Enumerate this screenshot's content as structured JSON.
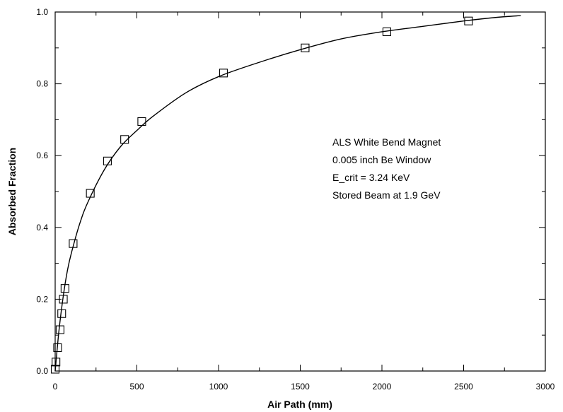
{
  "chart_data": {
    "type": "scatter",
    "title": "",
    "xlabel": "Air Path (mm)",
    "ylabel": "Absorbed Fraction",
    "xlim": [
      0,
      3000
    ],
    "ylim": [
      0,
      1.0
    ],
    "x_ticks": [
      0,
      500,
      1000,
      1500,
      2000,
      2500,
      3000
    ],
    "x_tick_labels": [
      "0",
      "500",
      "1000",
      "1500",
      "2000",
      "2500",
      "3000"
    ],
    "y_ticks": [
      0,
      0.2,
      0.4,
      0.6,
      0.8,
      1.0
    ],
    "y_tick_labels": [
      "0.0",
      "0.2",
      "0.4",
      "0.6",
      "0.8",
      "1.0"
    ],
    "grid": false,
    "annotation_lines": [
      "ALS White Bend Magnet",
      "0.005 inch Be Window",
      "E_crit = 3.24 KeV",
      "Stored Beam at 1.9 GeV"
    ],
    "series": [
      {
        "marker": "open-square",
        "points": [
          {
            "x": 0,
            "y": 0.005
          },
          {
            "x": 5,
            "y": 0.025
          },
          {
            "x": 15,
            "y": 0.065
          },
          {
            "x": 30,
            "y": 0.115
          },
          {
            "x": 40,
            "y": 0.16
          },
          {
            "x": 50,
            "y": 0.2
          },
          {
            "x": 60,
            "y": 0.23
          },
          {
            "x": 110,
            "y": 0.355
          },
          {
            "x": 215,
            "y": 0.495
          },
          {
            "x": 320,
            "y": 0.585
          },
          {
            "x": 425,
            "y": 0.645
          },
          {
            "x": 530,
            "y": 0.695
          },
          {
            "x": 1030,
            "y": 0.83
          },
          {
            "x": 1530,
            "y": 0.9
          },
          {
            "x": 2030,
            "y": 0.945
          },
          {
            "x": 2530,
            "y": 0.975
          }
        ]
      },
      {
        "style": "solid-line",
        "x": [
          0,
          10,
          25,
          50,
          75,
          100,
          150,
          200,
          300,
          400,
          500,
          600,
          800,
          1000,
          1250,
          1500,
          1750,
          2000,
          2250,
          2500,
          2700,
          2850
        ],
        "y": [
          0.0,
          0.05,
          0.12,
          0.21,
          0.28,
          0.33,
          0.41,
          0.47,
          0.56,
          0.625,
          0.67,
          0.71,
          0.775,
          0.82,
          0.86,
          0.895,
          0.925,
          0.945,
          0.96,
          0.975,
          0.985,
          0.99
        ]
      }
    ]
  }
}
